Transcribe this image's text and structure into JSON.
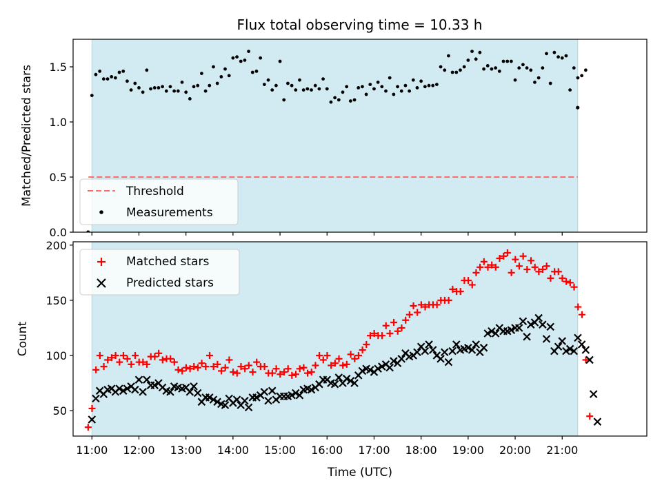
{
  "title": "Flux total observing time = 10.33 h",
  "colors": {
    "band": "#add8e6",
    "threshold": "#ff6b6b",
    "measurements": "#000000",
    "matched": "#ff0000",
    "predicted": "#000000"
  },
  "chart_data": [
    {
      "type": "scatter",
      "panel": "top",
      "ylabel": "Matched/Predicted stars",
      "xlim_hours": [
        10.6,
        22.8
      ],
      "ylim": [
        0,
        1.75
      ],
      "yticks": [
        0.0,
        0.5,
        1.0,
        1.5
      ],
      "yticklabels": [
        "0.0",
        "0.5",
        "1.0",
        "1.5"
      ],
      "observing_window_hours": [
        11.0,
        21.33
      ],
      "threshold": {
        "value": 0.5,
        "label": "Threshold"
      },
      "legend": {
        "placement": "lower-left",
        "entries": [
          "Threshold",
          "Measurements"
        ]
      },
      "series": [
        {
          "name": "Measurements",
          "x_start_hour": 11.0,
          "x_step_minutes": 5,
          "values": [
            1.24,
            1.43,
            1.46,
            1.39,
            1.39,
            1.41,
            1.4,
            1.45,
            1.46,
            1.37,
            1.29,
            1.35,
            1.31,
            1.27,
            1.47,
            1.3,
            1.31,
            1.31,
            1.32,
            1.28,
            1.32,
            1.28,
            1.28,
            1.36,
            1.27,
            1.21,
            1.32,
            1.33,
            1.44,
            1.28,
            1.33,
            1.5,
            1.35,
            1.41,
            1.48,
            1.42,
            1.58,
            1.59,
            1.55,
            1.56,
            1.64,
            1.45,
            1.46,
            1.58,
            1.34,
            1.38,
            1.29,
            1.33,
            1.55,
            1.2,
            1.35,
            1.33,
            1.29,
            1.38,
            1.29,
            1.3,
            1.29,
            1.33,
            1.3,
            1.39,
            1.3,
            1.18,
            1.22,
            1.2,
            1.27,
            1.32,
            1.19,
            1.2,
            1.31,
            1.32,
            1.25,
            1.34,
            1.3,
            1.36,
            1.32,
            1.28,
            1.4,
            1.25,
            1.32,
            1.28,
            1.33,
            1.28,
            1.38,
            1.31,
            1.37,
            1.32,
            1.33,
            1.33,
            1.34,
            1.5,
            1.47,
            1.6,
            1.45,
            1.45,
            1.47,
            1.5,
            1.56,
            1.64,
            1.57,
            1.63,
            1.48,
            1.51,
            1.48,
            1.49,
            1.46,
            1.55,
            1.55,
            1.55,
            1.38,
            1.49,
            1.52,
            1.49,
            1.47,
            1.36,
            1.4,
            1.49,
            1.62,
            1.35,
            1.63,
            1.59,
            1.58,
            1.6,
            1.29,
            1.49,
            1.4,
            1.42,
            1.47
          ],
          "extra_points": [
            [
              10.92,
              0.0
            ],
            [
              21.33,
              1.13
            ]
          ]
        }
      ]
    },
    {
      "type": "scatter",
      "panel": "bottom",
      "xlabel": "Time (UTC)",
      "ylabel": "Count",
      "xlim_hours": [
        10.6,
        22.8
      ],
      "ylim": [
        27,
        203
      ],
      "yticks": [
        50,
        100,
        150,
        200
      ],
      "yticklabels": [
        "50",
        "100",
        "150",
        "200"
      ],
      "xticks_hours": [
        11,
        12,
        13,
        14,
        15,
        16,
        17,
        18,
        19,
        20,
        21
      ],
      "xticklabels": [
        "11:00",
        "12:00",
        "13:00",
        "14:00",
        "15:00",
        "16:00",
        "17:00",
        "18:00",
        "19:00",
        "20:00",
        "21:00"
      ],
      "observing_window_hours": [
        11.0,
        21.33
      ],
      "legend": {
        "placement": "top-left",
        "entries": [
          "Matched stars",
          "Predicted stars"
        ]
      },
      "series": [
        {
          "name": "Matched stars",
          "marker": "plus",
          "x_start_hour": 10.92,
          "x_step_minutes": 5,
          "values": [
            35,
            52,
            87,
            100,
            90,
            96,
            98,
            100,
            94,
            100,
            97,
            92,
            100,
            94,
            94,
            92,
            99,
            99,
            102,
            96,
            97,
            97,
            94,
            87,
            86,
            89,
            88,
            90,
            89,
            93,
            90,
            100,
            90,
            92,
            86,
            89,
            96,
            85,
            84,
            90,
            88,
            91,
            85,
            94,
            90,
            90,
            84,
            84,
            88,
            83,
            85,
            88,
            82,
            83,
            88,
            89,
            84,
            85,
            91,
            100,
            96,
            100,
            91,
            93,
            97,
            91,
            92,
            101,
            97,
            100,
            105,
            110,
            118,
            120,
            118,
            118,
            127,
            120,
            130,
            122,
            125,
            132,
            137,
            145,
            139,
            146,
            144,
            146,
            146,
            146,
            150,
            150,
            150,
            160,
            158,
            158,
            168,
            168,
            164,
            175,
            180,
            185,
            180,
            182,
            180,
            188,
            190,
            193,
            175,
            187,
            181,
            190,
            178,
            186,
            180,
            176,
            178,
            181,
            170,
            176,
            176,
            170,
            167,
            166,
            162,
            144,
            137,
            96,
            45
          ]
        },
        {
          "name": "Predicted stars",
          "marker": "cross",
          "x_start_hour": 11.0,
          "x_step_minutes": 5,
          "values": [
            42,
            61,
            68,
            65,
            69,
            70,
            67,
            70,
            68,
            70,
            72,
            69,
            78,
            67,
            78,
            73,
            73,
            75,
            71,
            68,
            67,
            72,
            71,
            70,
            71,
            67,
            72,
            66,
            58,
            62,
            62,
            60,
            58,
            56,
            55,
            61,
            57,
            60,
            55,
            59,
            53,
            62,
            62,
            64,
            67,
            59,
            68,
            60,
            63,
            63,
            63,
            64,
            66,
            64,
            69,
            70,
            69,
            71,
            74,
            78,
            78,
            75,
            74,
            80,
            75,
            79,
            77,
            75,
            82,
            86,
            88,
            87,
            85,
            88,
            90,
            92,
            89,
            95,
            93,
            97,
            102,
            99,
            100,
            103,
            108,
            104,
            110,
            105,
            100,
            97,
            103,
            94,
            104,
            110,
            105,
            106,
            107,
            105,
            110,
            103,
            107,
            120,
            122,
            120,
            125,
            122,
            122,
            123,
            125,
            125,
            131,
            117,
            128,
            130,
            134,
            128,
            115,
            126,
            104,
            108,
            113,
            104,
            106,
            104,
            116,
            110,
            105,
            96,
            65,
            40
          ]
        }
      ]
    }
  ]
}
